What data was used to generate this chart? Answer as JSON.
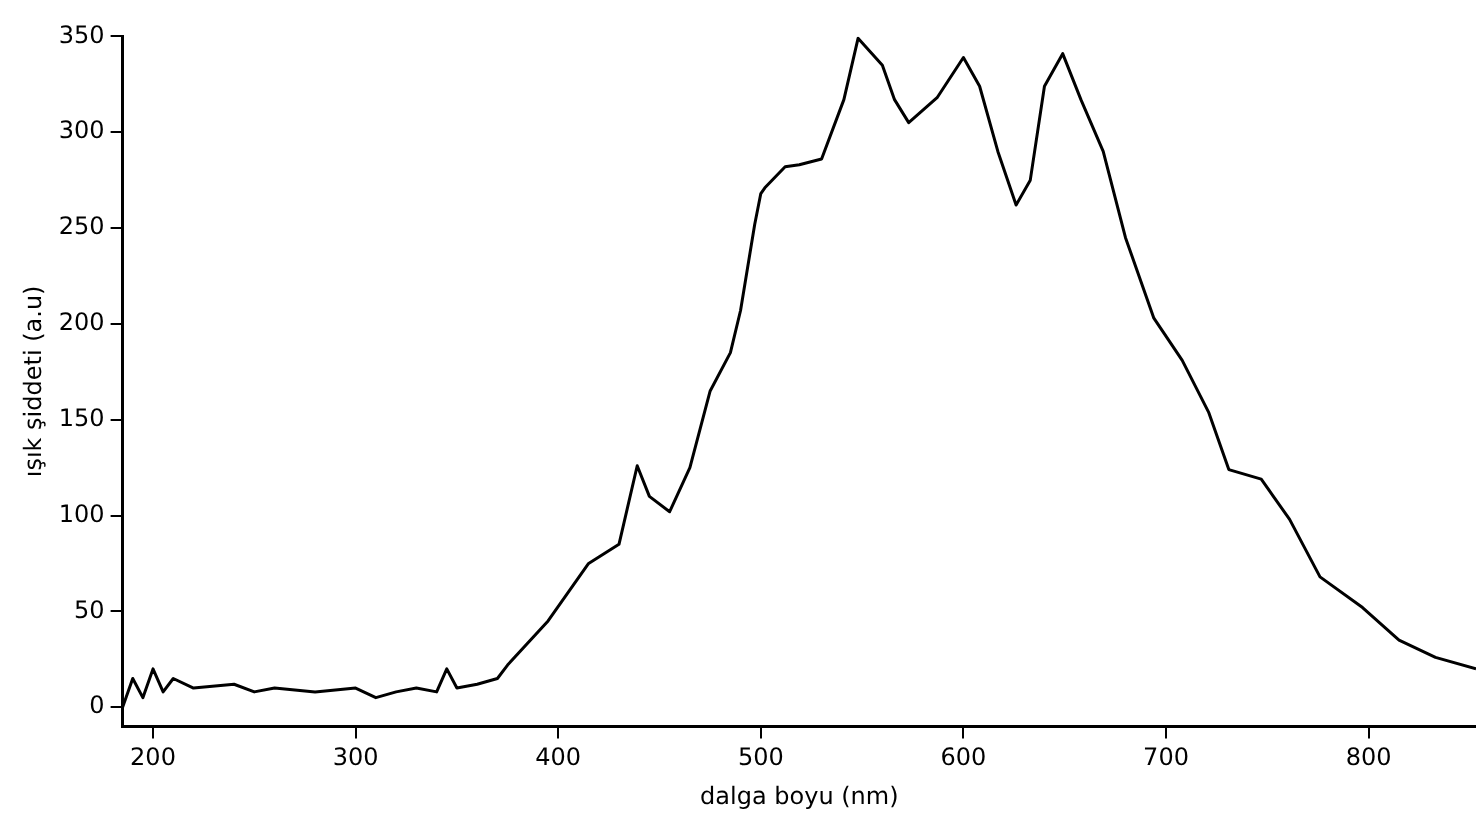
{
  "chart_data": {
    "type": "line",
    "xlabel": "dalga boyu (nm)",
    "ylabel": "ışık şiddeti (a.u)",
    "xlim": [
      185,
      853
    ],
    "ylim": [
      -10,
      350
    ],
    "xticks": [
      200,
      300,
      400,
      500,
      600,
      700,
      800
    ],
    "yticks": [
      0,
      50,
      100,
      150,
      200,
      250,
      300,
      350
    ],
    "grid": false,
    "legend": false,
    "marker": "none",
    "line_style": "solid",
    "series": [
      {
        "color": "#000000",
        "x": [
          185,
          190,
          195,
          200,
          205,
          210,
          220,
          240,
          250,
          260,
          280,
          300,
          310,
          320,
          330,
          340,
          345,
          350,
          360,
          370,
          375,
          395,
          415,
          430,
          439,
          445,
          455,
          465,
          475,
          485,
          490,
          497,
          500,
          502,
          512,
          519,
          530,
          541,
          548,
          560,
          566,
          573,
          587,
          600,
          608,
          617,
          626,
          633,
          640,
          649,
          658,
          669,
          680,
          694,
          708,
          721,
          731,
          747,
          761,
          776,
          797,
          815,
          833,
          853
        ],
        "values": [
          0,
          15,
          5,
          20,
          8,
          15,
          10,
          12,
          8,
          10,
          8,
          10,
          5,
          8,
          10,
          8,
          20,
          10,
          12,
          15,
          22,
          45,
          75,
          85,
          126,
          110,
          102,
          125,
          165,
          185,
          207,
          252,
          268,
          271,
          282,
          283,
          286,
          317,
          349,
          335,
          317,
          305,
          318,
          339,
          324,
          290,
          262,
          275,
          324,
          341,
          317,
          290,
          245,
          203,
          181,
          154,
          124,
          119,
          98,
          68,
          52,
          35,
          26,
          20
        ]
      }
    ]
  }
}
